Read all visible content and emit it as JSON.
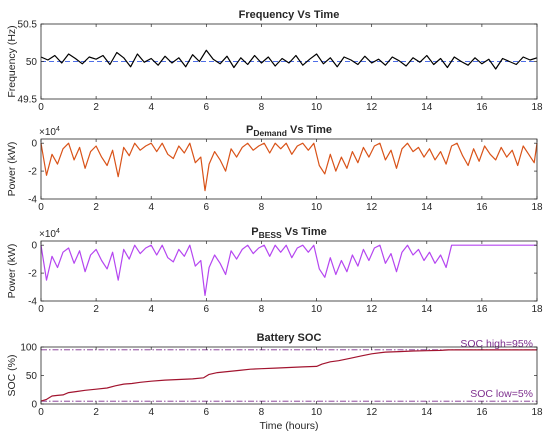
{
  "chart_data": [
    {
      "type": "line",
      "title": "Frequency Vs Time",
      "title_sub": "",
      "title_suffix": "",
      "xlabel": "",
      "ylabel": "Frequency (Hz)",
      "xlim": [
        0,
        18
      ],
      "ylim": [
        49.5,
        50.5
      ],
      "xticks": [
        0,
        2,
        4,
        6,
        8,
        10,
        12,
        14,
        16,
        18
      ],
      "yticks": [
        49.5,
        50,
        50.5
      ],
      "ytick_labels": [
        "49.5",
        "50",
        "50.5"
      ],
      "exponent_label": "",
      "exponent_power": "",
      "grid": false,
      "line_color": "#000000",
      "reference_line": {
        "y": 50.0,
        "color": "#4f6fe8"
      },
      "series": [
        {
          "x": [
            0,
            0.25,
            0.5,
            0.75,
            1,
            1.25,
            1.5,
            1.75,
            2,
            2.25,
            2.5,
            2.75,
            3,
            3.25,
            3.5,
            3.75,
            4,
            4.25,
            4.5,
            4.75,
            5,
            5.25,
            5.5,
            5.75,
            6,
            6.25,
            6.5,
            6.75,
            7,
            7.25,
            7.5,
            7.75,
            8,
            8.25,
            8.5,
            8.75,
            9,
            9.25,
            9.5,
            9.75,
            10,
            10.25,
            10.5,
            10.75,
            11,
            11.25,
            11.5,
            11.75,
            12,
            12.25,
            12.5,
            12.75,
            13,
            13.25,
            13.5,
            13.75,
            14,
            14.25,
            14.5,
            14.75,
            15,
            15.25,
            15.5,
            15.75,
            16,
            16.25,
            16.5,
            16.75,
            17,
            17.25,
            17.5,
            17.75,
            18
          ],
          "y": [
            50.06,
            50.02,
            50.08,
            49.98,
            50.1,
            50.04,
            49.97,
            50.06,
            50.03,
            50.08,
            49.96,
            50.12,
            50.05,
            49.93,
            50.1,
            49.99,
            50.04,
            49.95,
            50.07,
            49.98,
            50.05,
            49.93,
            50.09,
            50.0,
            50.15,
            50.03,
            49.97,
            50.07,
            49.92,
            50.05,
            49.96,
            50.08,
            49.98,
            50.06,
            49.94,
            50.04,
            49.98,
            50.08,
            49.95,
            50.03,
            50.1,
            49.97,
            50.05,
            49.93,
            50.06,
            50.02,
            49.96,
            50.07,
            49.98,
            50.03,
            49.95,
            50.06,
            50.01,
            49.94,
            50.05,
            49.99,
            50.08,
            49.96,
            50.04,
            49.92,
            50.06,
            50.0,
            49.95,
            50.05,
            49.97,
            50.03,
            49.9,
            50.04,
            50.0,
            49.96,
            50.06,
            50.02,
            50.05
          ]
        }
      ]
    },
    {
      "type": "line",
      "title": "P",
      "title_sub": "Demand",
      "title_suffix": " Vs Time",
      "xlabel": "",
      "ylabel": "Power (kW)",
      "xlim": [
        0,
        18
      ],
      "ylim": [
        -4,
        0.3
      ],
      "xticks": [
        0,
        2,
        4,
        6,
        8,
        10,
        12,
        14,
        16,
        18
      ],
      "yticks": [
        0,
        -2,
        -4
      ],
      "ytick_labels": [
        "0",
        "-2",
        "-4"
      ],
      "exponent_label": "×10",
      "exponent_power": "4",
      "grid": false,
      "line_color": "#d95319",
      "series": [
        {
          "x": [
            0,
            0.2,
            0.4,
            0.6,
            0.8,
            1,
            1.2,
            1.4,
            1.6,
            1.8,
            2,
            2.2,
            2.4,
            2.6,
            2.8,
            3,
            3.2,
            3.4,
            3.6,
            3.8,
            4,
            4.2,
            4.4,
            4.6,
            4.8,
            5,
            5.2,
            5.4,
            5.6,
            5.8,
            5.95,
            6.1,
            6.3,
            6.5,
            6.7,
            6.9,
            7.1,
            7.3,
            7.5,
            7.7,
            7.9,
            8.1,
            8.3,
            8.5,
            8.7,
            8.9,
            9.1,
            9.3,
            9.5,
            9.7,
            9.9,
            10.1,
            10.3,
            10.5,
            10.7,
            10.9,
            11.1,
            11.3,
            11.5,
            11.7,
            11.9,
            12.1,
            12.3,
            12.5,
            12.7,
            12.9,
            13.1,
            13.3,
            13.5,
            13.7,
            13.9,
            14.1,
            14.3,
            14.5,
            14.7,
            14.9,
            15.1,
            15.3,
            15.5,
            15.7,
            15.9,
            16.1,
            16.3,
            16.5,
            16.7,
            16.9,
            17.1,
            17.3,
            17.5,
            17.7,
            17.9,
            18
          ],
          "y": [
            0,
            -2.3,
            -0.8,
            -1.5,
            -0.4,
            0,
            -1.2,
            -0.3,
            -1.8,
            -0.6,
            -0.2,
            -1.0,
            -1.6,
            -0.5,
            -2.4,
            -0.3,
            -0.9,
            0,
            -0.5,
            -0.2,
            0,
            -0.6,
            0,
            -0.8,
            -1.1,
            -0.2,
            -0.7,
            0,
            -1.4,
            -1.0,
            -3.4,
            -1.5,
            -0.6,
            -1.2,
            -2.0,
            -0.4,
            -1.0,
            -0.3,
            0,
            -0.5,
            -0.2,
            0,
            -0.7,
            0,
            -0.4,
            0,
            -0.8,
            -0.2,
            0,
            -0.5,
            0,
            -1.6,
            -2.2,
            -0.8,
            -2.0,
            -1.0,
            -1.8,
            -0.6,
            -1.4,
            -0.3,
            -1.0,
            -0.2,
            0,
            -1.2,
            -0.5,
            -1.8,
            -0.4,
            0,
            -0.6,
            -0.3,
            -1.0,
            -0.4,
            -1.2,
            -0.6,
            -1.5,
            -0.2,
            0,
            -0.9,
            -1.6,
            -0.4,
            -1.3,
            -0.2,
            -0.8,
            -1.2,
            -0.3,
            -1.0,
            -0.5,
            -1.6,
            -0.2,
            -0.8,
            -1.4,
            0
          ]
        }
      ]
    },
    {
      "type": "line",
      "title": "P",
      "title_sub": "BESS",
      "title_suffix": " Vs Time",
      "xlabel": "",
      "ylabel": "Power (kW)",
      "xlim": [
        0,
        18
      ],
      "ylim": [
        -4,
        0.3
      ],
      "xticks": [
        0,
        2,
        4,
        6,
        8,
        10,
        12,
        14,
        16,
        18
      ],
      "yticks": [
        0,
        -2,
        -4
      ],
      "ytick_labels": [
        "0",
        "-2",
        "-4"
      ],
      "exponent_label": "×10",
      "exponent_power": "4",
      "grid": false,
      "line_color": "#b546f0",
      "series": [
        {
          "x": [
            0,
            0.2,
            0.4,
            0.6,
            0.8,
            1,
            1.2,
            1.4,
            1.6,
            1.8,
            2,
            2.2,
            2.4,
            2.6,
            2.8,
            3,
            3.2,
            3.4,
            3.6,
            3.8,
            4,
            4.2,
            4.4,
            4.6,
            4.8,
            5,
            5.2,
            5.4,
            5.6,
            5.8,
            5.95,
            6.1,
            6.3,
            6.5,
            6.7,
            6.9,
            7.1,
            7.3,
            7.5,
            7.7,
            7.9,
            8.1,
            8.3,
            8.5,
            8.7,
            8.9,
            9.1,
            9.3,
            9.5,
            9.7,
            9.9,
            10.1,
            10.3,
            10.5,
            10.7,
            10.9,
            11.1,
            11.3,
            11.5,
            11.7,
            11.9,
            12.1,
            12.3,
            12.5,
            12.7,
            12.9,
            13.1,
            13.3,
            13.5,
            13.7,
            13.9,
            14.1,
            14.3,
            14.5,
            14.7,
            14.9,
            15.1,
            15.5,
            16,
            16.5,
            17,
            17.5,
            18
          ],
          "y": [
            0,
            -2.5,
            -0.8,
            -1.6,
            -0.5,
            -0.2,
            -1.3,
            -0.4,
            -1.9,
            -0.7,
            -0.3,
            -1.1,
            -1.7,
            -0.5,
            -2.5,
            -0.3,
            -1.0,
            0,
            -0.6,
            -0.2,
            0,
            -0.7,
            0,
            -0.9,
            -1.2,
            -0.3,
            -0.8,
            0,
            -1.5,
            -1.1,
            -3.6,
            -1.6,
            -0.7,
            -1.3,
            -2.1,
            -0.4,
            -1.0,
            -0.3,
            0,
            -0.6,
            -0.2,
            0,
            -0.8,
            0,
            -0.5,
            0,
            -0.9,
            -0.2,
            0,
            -0.5,
            0,
            -1.7,
            -2.3,
            -0.9,
            -2.1,
            -1.1,
            -1.9,
            -0.7,
            -1.5,
            -0.3,
            -1.1,
            -0.2,
            0,
            -1.3,
            -0.6,
            -1.9,
            -0.5,
            0,
            -0.7,
            -0.3,
            -1.1,
            -0.5,
            -1.3,
            -0.7,
            -1.6,
            0,
            0,
            0,
            0,
            0,
            0,
            0,
            0
          ]
        }
      ]
    },
    {
      "type": "line",
      "title": "Battery SOC",
      "title_sub": "",
      "title_suffix": "",
      "xlabel": "Time (hours)",
      "ylabel": "SOC (%)",
      "xlim": [
        0,
        18
      ],
      "ylim": [
        0,
        100
      ],
      "xticks": [
        0,
        2,
        4,
        6,
        8,
        10,
        12,
        14,
        16,
        18
      ],
      "yticks": [
        0,
        50,
        100
      ],
      "ytick_labels": [
        "0",
        "50",
        "100"
      ],
      "exponent_label": "",
      "exponent_power": "",
      "grid": false,
      "line_color": "#a2142f",
      "limit_lines": [
        {
          "y": 95,
          "label": "SOC high=95%",
          "color": "#7e2f8e"
        },
        {
          "y": 5,
          "label": "SOC low=5%",
          "color": "#7e2f8e"
        }
      ],
      "series": [
        {
          "x": [
            0,
            0.2,
            0.4,
            0.6,
            0.8,
            1,
            1.3,
            1.6,
            2,
            2.4,
            2.7,
            3,
            3.3,
            3.6,
            4,
            4.5,
            5,
            5.5,
            5.9,
            6.1,
            6.4,
            6.8,
            7.2,
            7.6,
            8,
            8.5,
            9,
            9.5,
            10,
            10.2,
            10.5,
            10.8,
            11.2,
            11.6,
            12,
            12.5,
            13,
            13.5,
            14,
            14.5,
            14.8,
            15,
            16,
            17,
            18
          ],
          "y": [
            5,
            8,
            14,
            15,
            16,
            20,
            22,
            24,
            26,
            28,
            32,
            35,
            36,
            38,
            40,
            42,
            43,
            44,
            46,
            52,
            55,
            57,
            59,
            61,
            62,
            63,
            64,
            65,
            66,
            70,
            74,
            76,
            80,
            84,
            88,
            91,
            92,
            93,
            93.5,
            94,
            95,
            95,
            95,
            95,
            95
          ]
        }
      ]
    }
  ]
}
